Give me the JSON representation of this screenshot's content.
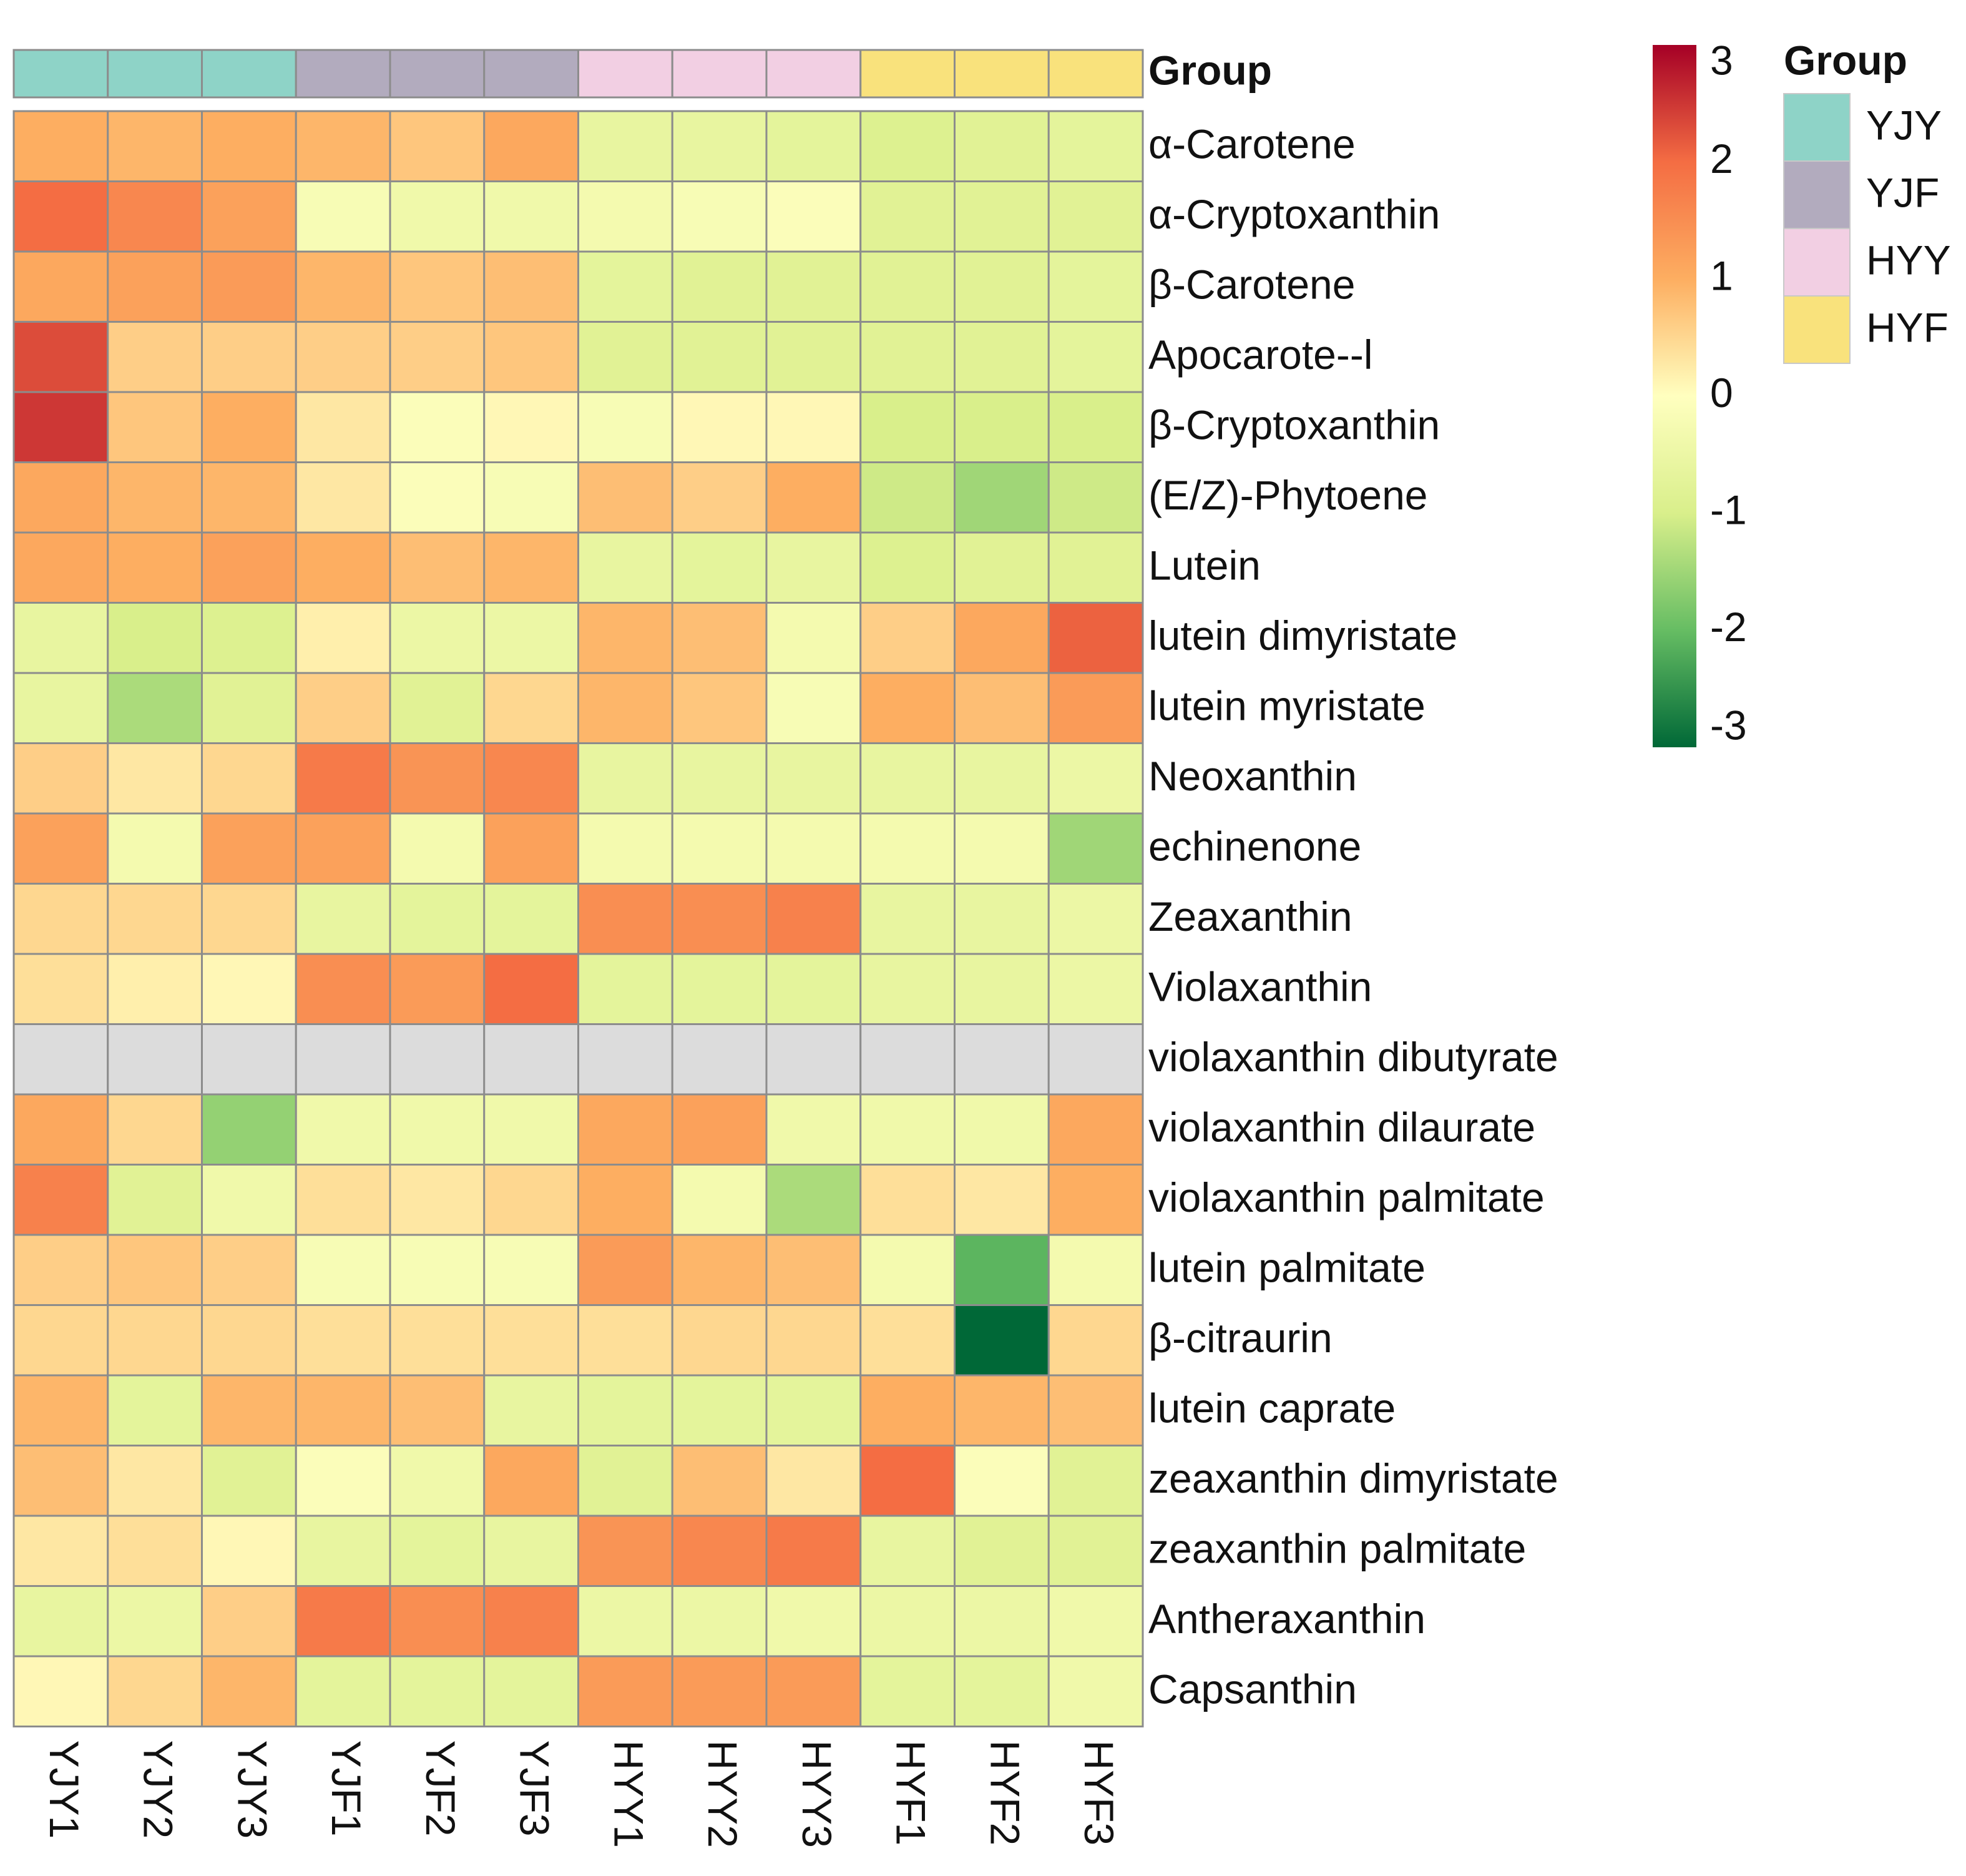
{
  "chart_data": {
    "type": "heatmap",
    "title": "",
    "annotation_title": "Group",
    "columns": [
      "YJY1",
      "YJY2",
      "YJY3",
      "YJF1",
      "YJF2",
      "YJF3",
      "HYY1",
      "HYY2",
      "HYY3",
      "HYF1",
      "HYF2",
      "HYF3"
    ],
    "column_groups": [
      "YJY",
      "YJY",
      "YJY",
      "YJF",
      "YJF",
      "YJF",
      "HYY",
      "HYY",
      "HYY",
      "HYF",
      "HYF",
      "HYF"
    ],
    "rows": [
      "α-Carotene",
      "α-Cryptoxanthin",
      "β-Carotene",
      "Apocarote--l",
      "β-Cryptoxanthin",
      "(E/Z)-Phytoene",
      "Lutein",
      "lutein dimyristate",
      "lutein myristate",
      "Neoxanthin",
      "echinenone",
      "Zeaxanthin",
      "Violaxanthin",
      "violaxanthin dibutyrate",
      "violaxanthin dilaurate",
      "violaxanthin palmitate",
      "lutein palmitate",
      "β-citraurin",
      "lutein caprate",
      "zeaxanthin dimyristate",
      "zeaxanthin palmitate",
      "Antheraxanthin",
      "Capsanthin"
    ],
    "values": [
      [
        1.0,
        0.9,
        1.0,
        0.9,
        0.7,
        1.1,
        -0.6,
        -0.6,
        -0.7,
        -0.9,
        -0.8,
        -0.7
      ],
      [
        2.0,
        1.6,
        1.2,
        -0.2,
        -0.4,
        -0.4,
        -0.3,
        -0.2,
        -0.1,
        -0.8,
        -0.8,
        -0.8
      ],
      [
        1.1,
        1.2,
        1.3,
        0.9,
        0.7,
        0.8,
        -0.7,
        -0.8,
        -0.8,
        -0.8,
        -0.8,
        -0.7
      ],
      [
        2.3,
        0.6,
        0.6,
        0.6,
        0.6,
        0.7,
        -0.8,
        -0.8,
        -0.8,
        -0.8,
        -0.8,
        -0.7
      ],
      [
        2.5,
        0.7,
        1.0,
        0.3,
        -0.1,
        0.1,
        -0.2,
        0.1,
        0.1,
        -1.0,
        -1.0,
        -1.0
      ],
      [
        1.1,
        0.9,
        0.9,
        0.3,
        -0.1,
        -0.2,
        0.8,
        0.6,
        1.0,
        -1.1,
        -1.5,
        -1.1
      ],
      [
        1.1,
        1.0,
        1.2,
        1.0,
        0.8,
        0.9,
        -0.6,
        -0.7,
        -0.6,
        -0.9,
        -0.8,
        -0.8
      ],
      [
        -0.6,
        -1.0,
        -0.9,
        0.2,
        -0.5,
        -0.5,
        0.9,
        0.8,
        -0.3,
        0.6,
        1.1,
        2.1
      ],
      [
        -0.6,
        -1.4,
        -0.8,
        0.6,
        -0.8,
        0.5,
        0.9,
        0.7,
        -0.2,
        1.0,
        0.8,
        1.3
      ],
      [
        0.6,
        0.3,
        0.5,
        1.8,
        1.4,
        1.6,
        -0.6,
        -0.6,
        -0.6,
        -0.6,
        -0.6,
        -0.5
      ],
      [
        1.2,
        -0.3,
        1.2,
        1.2,
        -0.3,
        1.2,
        -0.3,
        -0.3,
        -0.3,
        -0.3,
        -0.3,
        -1.5
      ],
      [
        0.5,
        0.5,
        0.5,
        -0.6,
        -0.7,
        -0.7,
        1.5,
        1.5,
        1.7,
        -0.6,
        -0.6,
        -0.5
      ],
      [
        0.4,
        0.2,
        0.1,
        1.5,
        1.3,
        2.0,
        -0.7,
        -0.7,
        -0.7,
        -0.6,
        -0.6,
        -0.5
      ],
      [
        null,
        null,
        null,
        null,
        null,
        null,
        null,
        null,
        null,
        null,
        null,
        null
      ],
      [
        1.1,
        0.5,
        -1.6,
        -0.4,
        -0.4,
        -0.4,
        1.1,
        1.2,
        -0.4,
        -0.4,
        -0.4,
        1.1
      ],
      [
        1.7,
        -0.8,
        -0.4,
        0.4,
        0.3,
        0.5,
        1.0,
        -0.3,
        -1.4,
        0.4,
        0.3,
        1.0
      ],
      [
        0.6,
        0.7,
        0.6,
        -0.2,
        -0.2,
        -0.2,
        1.3,
        0.9,
        0.8,
        -0.3,
        -2.1,
        -0.3
      ],
      [
        0.5,
        0.5,
        0.5,
        0.4,
        0.4,
        0.4,
        0.4,
        0.5,
        0.5,
        0.4,
        -3.0,
        0.5
      ],
      [
        0.9,
        -0.7,
        0.9,
        0.9,
        0.8,
        -0.6,
        -0.7,
        -0.7,
        -0.7,
        1.0,
        0.9,
        0.8
      ],
      [
        0.8,
        0.3,
        -0.8,
        -0.1,
        -0.4,
        1.1,
        -0.8,
        0.8,
        0.3,
        2.0,
        -0.1,
        -0.8
      ],
      [
        0.3,
        0.4,
        0.1,
        -0.6,
        -0.7,
        -0.6,
        1.4,
        1.6,
        1.8,
        -0.6,
        -0.8,
        -0.8
      ],
      [
        -0.6,
        -0.5,
        0.6,
        1.8,
        1.5,
        1.7,
        -0.5,
        -0.5,
        -0.4,
        -0.5,
        -0.5,
        -0.4
      ],
      [
        0.1,
        0.5,
        0.9,
        -0.7,
        -0.7,
        -0.7,
        1.3,
        1.3,
        1.3,
        -0.7,
        -0.7,
        -0.4
      ]
    ],
    "colorbar": {
      "range": [
        -3,
        3
      ],
      "ticks": [
        "3",
        "2",
        "1",
        "0",
        "-1",
        "-2",
        "-3"
      ],
      "colors": {
        "low": "#006837",
        "mid": "#ffffbf",
        "high": "#a50026"
      }
    },
    "legend": {
      "title": "Group",
      "items": [
        {
          "label": "YJY",
          "color": "#8ed3c7"
        },
        {
          "label": "YJF",
          "color": "#b2abbe"
        },
        {
          "label": "HYY",
          "color": "#f2cfe3"
        },
        {
          "label": "HYF",
          "color": "#f9e27c"
        }
      ]
    },
    "na_color": "#dcdcdc",
    "grid_color": "#8c8c8c"
  }
}
